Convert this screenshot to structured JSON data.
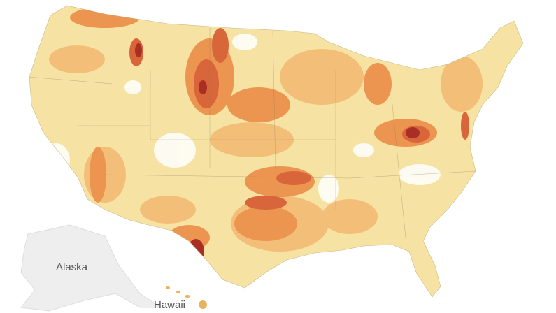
{
  "labels": [
    "Alaska",
    "Hawaii"
  ]
}
